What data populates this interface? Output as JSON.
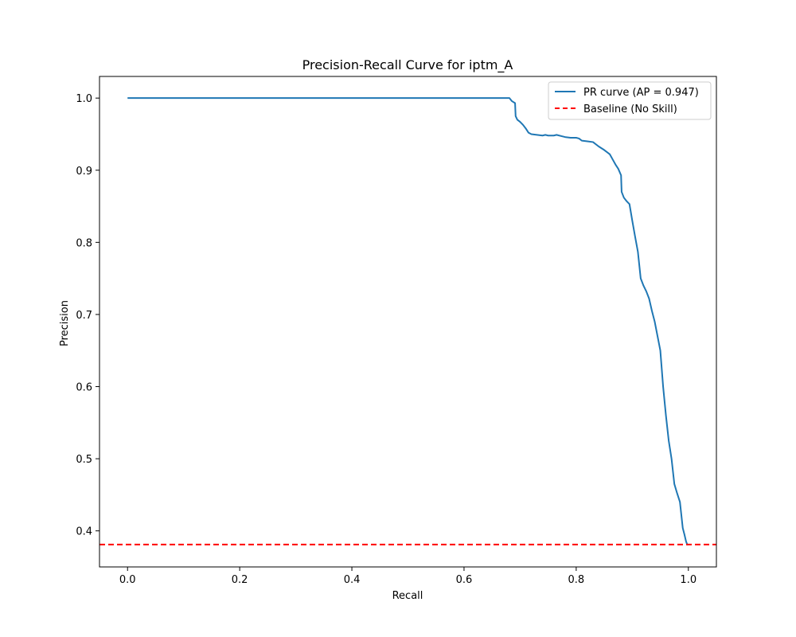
{
  "chart_data": {
    "type": "line",
    "title": "Precision-Recall Curve for iptm_A",
    "xlabel": "Recall",
    "ylabel": "Precision",
    "xlim": [
      -0.05,
      1.05
    ],
    "ylim": [
      0.35,
      1.03
    ],
    "xticks": [
      0.0,
      0.2,
      0.4,
      0.6,
      0.8,
      1.0
    ],
    "xtick_labels": [
      "0.0",
      "0.2",
      "0.4",
      "0.6",
      "0.8",
      "1.0"
    ],
    "yticks": [
      0.4,
      0.5,
      0.6,
      0.7,
      0.8,
      0.9,
      1.0
    ],
    "ytick_labels": [
      "0.4",
      "0.5",
      "0.6",
      "0.7",
      "0.8",
      "0.9",
      "1.0"
    ],
    "grid": false,
    "legend_position": "top-right",
    "series": [
      {
        "name": "PR curve (AP = 0.947)",
        "color": "#1f77b4",
        "style": "solid",
        "x": [
          0.0,
          0.681,
          0.685,
          0.691,
          0.692,
          0.695,
          0.7,
          0.705,
          0.71,
          0.715,
          0.72,
          0.73,
          0.74,
          0.745,
          0.75,
          0.76,
          0.765,
          0.775,
          0.78,
          0.79,
          0.795,
          0.8,
          0.805,
          0.81,
          0.82,
          0.83,
          0.84,
          0.85,
          0.86,
          0.865,
          0.87,
          0.875,
          0.88,
          0.881,
          0.885,
          0.89,
          0.895,
          0.9,
          0.905,
          0.91,
          0.915,
          0.92,
          0.925,
          0.93,
          0.935,
          0.94,
          0.945,
          0.95,
          0.955,
          0.96,
          0.965,
          0.97,
          0.975,
          0.98,
          0.985,
          0.99,
          0.993,
          0.996,
          0.998,
          1.0
        ],
        "y": [
          1.0,
          1.0,
          0.996,
          0.993,
          0.975,
          0.97,
          0.967,
          0.963,
          0.958,
          0.952,
          0.95,
          0.949,
          0.948,
          0.949,
          0.948,
          0.948,
          0.949,
          0.947,
          0.946,
          0.945,
          0.945,
          0.945,
          0.944,
          0.941,
          0.94,
          0.939,
          0.933,
          0.928,
          0.922,
          0.915,
          0.908,
          0.902,
          0.893,
          0.87,
          0.862,
          0.857,
          0.853,
          0.83,
          0.808,
          0.787,
          0.75,
          0.74,
          0.732,
          0.722,
          0.705,
          0.69,
          0.67,
          0.65,
          0.6,
          0.56,
          0.525,
          0.5,
          0.465,
          0.452,
          0.44,
          0.404,
          0.395,
          0.385,
          0.381,
          0.381
        ]
      },
      {
        "name": "Baseline (No Skill)",
        "color": "#ff0000",
        "style": "dashed",
        "y_constant": 0.381
      }
    ]
  }
}
